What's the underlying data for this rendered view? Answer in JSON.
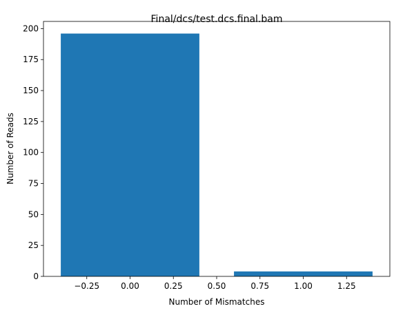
{
  "chart_data": {
    "type": "bar",
    "title": "Final/dcs/test.dcs.final.bam",
    "xlabel": "Number of Mismatches",
    "ylabel": "Number of Reads",
    "x": [
      0,
      1
    ],
    "values": [
      196,
      4
    ],
    "bar_width": 0.8,
    "xlim": [
      -0.5,
      1.5
    ],
    "ylim": [
      0,
      205.8
    ],
    "xticks": [
      -0.25,
      0.0,
      0.25,
      0.5,
      0.75,
      1.0,
      1.25
    ],
    "xtick_labels": [
      "−0.25",
      "0.00",
      "0.25",
      "0.50",
      "0.75",
      "1.00",
      "1.25"
    ],
    "yticks": [
      0,
      25,
      50,
      75,
      100,
      125,
      150,
      175,
      200
    ],
    "ytick_labels": [
      "0",
      "25",
      "50",
      "75",
      "100",
      "125",
      "150",
      "175",
      "200"
    ],
    "grid": false,
    "bar_color": "#1f77b4"
  }
}
